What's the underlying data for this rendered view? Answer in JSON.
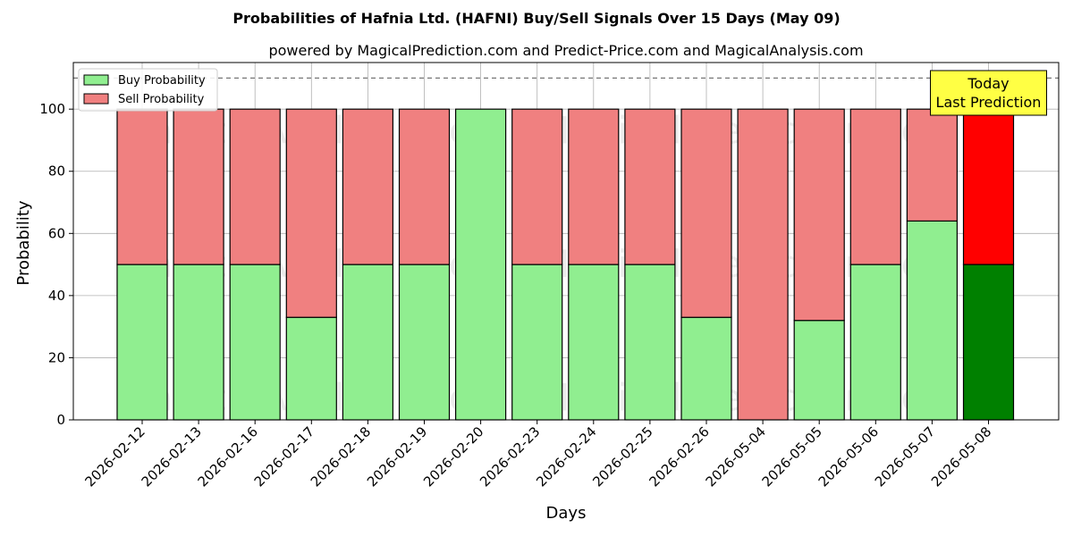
{
  "chart_data": {
    "type": "bar",
    "stacked": true,
    "title": "Probabilities of Hafnia Ltd. (HAFNI) Buy/Sell Signals Over 15 Days (May 09)",
    "subtitle": "powered by MagicalPrediction.com and Predict-Price.com and MagicalAnalysis.com",
    "xlabel": "Days",
    "ylabel": "Probability",
    "ylim": [
      0,
      115
    ],
    "yticks": [
      0,
      20,
      40,
      60,
      80,
      100
    ],
    "grid": true,
    "legend_position": "top-left",
    "reference_line": 110,
    "categories": [
      "2026-02-12",
      "2026-02-13",
      "2026-02-16",
      "2026-02-17",
      "2026-02-18",
      "2026-02-19",
      "2026-02-20",
      "2026-02-23",
      "2026-02-24",
      "2026-02-25",
      "2026-02-26",
      "2026-05-04",
      "2026-05-05",
      "2026-05-06",
      "2026-05-07",
      "2026-05-08"
    ],
    "series": [
      {
        "name": "Buy Probability",
        "color": "#90ee90",
        "highlight_color": "#008000",
        "values": [
          50,
          50,
          50,
          33,
          50,
          50,
          100,
          50,
          50,
          50,
          33,
          0,
          32,
          50,
          64,
          50
        ]
      },
      {
        "name": "Sell Probability",
        "color": "#f08080",
        "highlight_color": "#ff0000",
        "values": [
          50,
          50,
          50,
          67,
          50,
          50,
          0,
          50,
          50,
          50,
          67,
          100,
          68,
          50,
          36,
          50
        ]
      }
    ],
    "highlight_index": 15,
    "annotation": {
      "lines": [
        "Today",
        "Last Prediction"
      ],
      "color": "#ffff44"
    },
    "watermarks": [
      "MagicalAnalysis.com",
      "MagicalPrediction.com"
    ]
  }
}
